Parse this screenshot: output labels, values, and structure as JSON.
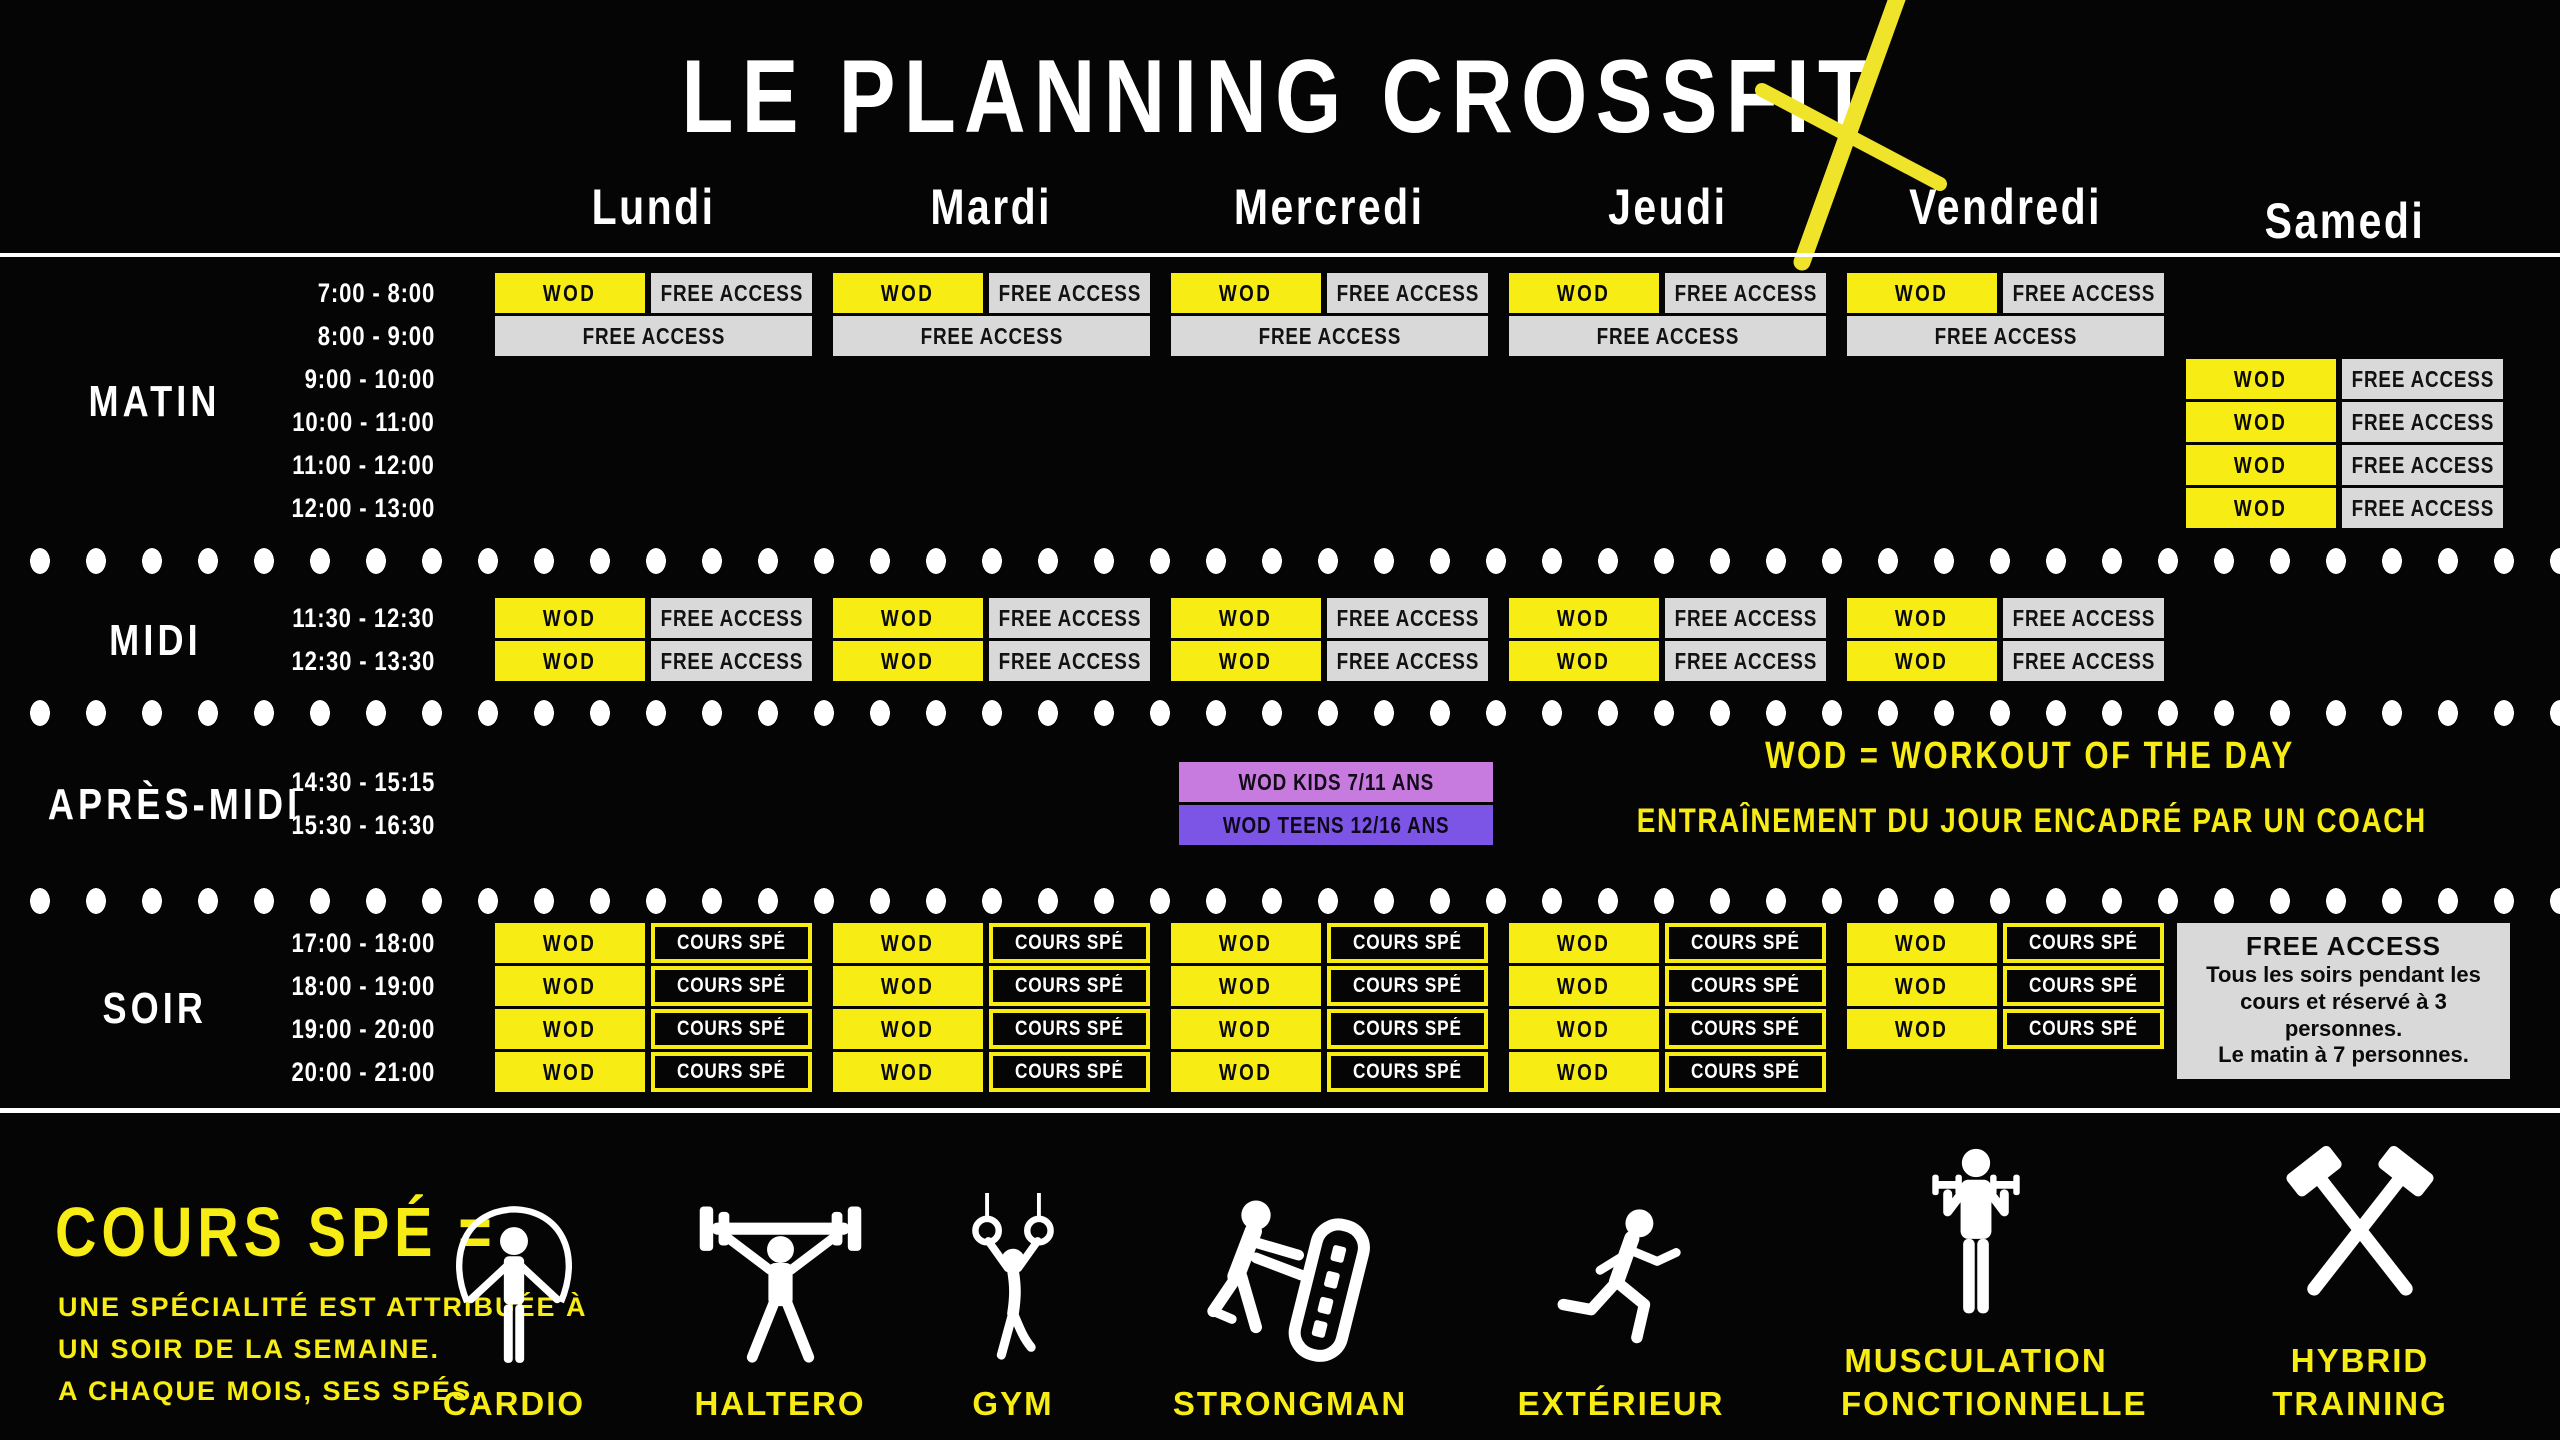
{
  "title": "LE PLANNING CROSSFIT",
  "days": [
    "Lundi",
    "Mardi",
    "Mercredi",
    "Jeudi",
    "Vendredi",
    "Samedi"
  ],
  "cell_labels": {
    "wod": "WOD",
    "free_access": "FREE ACCESS",
    "cours_spe": "COURS SPÉ"
  },
  "special_labels": {
    "kids": "WOD KIDS 7/11 ANS",
    "teens": "WOD TEENS 12/16 ANS"
  },
  "sections": [
    {
      "label": "MATIN",
      "rows": [
        {
          "time": "7:00 - 8:00",
          "cells": [
            {
              "day": 0,
              "type": "wod_free"
            },
            {
              "day": 1,
              "type": "wod_free"
            },
            {
              "day": 2,
              "type": "wod_free"
            },
            {
              "day": 3,
              "type": "wod_free"
            },
            {
              "day": 4,
              "type": "wod_free"
            }
          ]
        },
        {
          "time": "8:00 - 9:00",
          "cells": [
            {
              "day": 0,
              "type": "free_full"
            },
            {
              "day": 1,
              "type": "free_full"
            },
            {
              "day": 2,
              "type": "free_full"
            },
            {
              "day": 3,
              "type": "free_full"
            },
            {
              "day": 4,
              "type": "free_full"
            }
          ]
        },
        {
          "time": "9:00 - 10:00",
          "cells": [
            {
              "day": 5,
              "type": "wod_free"
            }
          ]
        },
        {
          "time": "10:00 - 11:00",
          "cells": [
            {
              "day": 5,
              "type": "wod_free"
            }
          ]
        },
        {
          "time": "11:00 - 12:00",
          "cells": [
            {
              "day": 5,
              "type": "wod_free"
            }
          ]
        },
        {
          "time": "12:00 - 13:00",
          "cells": [
            {
              "day": 5,
              "type": "wod_free"
            }
          ]
        }
      ]
    },
    {
      "label": "MIDI",
      "rows": [
        {
          "time": "11:30 - 12:30",
          "cells": [
            {
              "day": 0,
              "type": "wod_free"
            },
            {
              "day": 1,
              "type": "wod_free"
            },
            {
              "day": 2,
              "type": "wod_free"
            },
            {
              "day": 3,
              "type": "wod_free"
            },
            {
              "day": 4,
              "type": "wod_free"
            }
          ]
        },
        {
          "time": "12:30 - 13:30",
          "cells": [
            {
              "day": 0,
              "type": "wod_free"
            },
            {
              "day": 1,
              "type": "wod_free"
            },
            {
              "day": 2,
              "type": "wod_free"
            },
            {
              "day": 3,
              "type": "wod_free"
            },
            {
              "day": 4,
              "type": "wod_free"
            }
          ]
        }
      ]
    },
    {
      "label": "APRÈS-MIDI",
      "rows": [
        {
          "time": "14:30 - 15:15",
          "cells": [
            {
              "day": 2,
              "type": "kids"
            }
          ]
        },
        {
          "time": "15:30 - 16:30",
          "cells": [
            {
              "day": 2,
              "type": "teens"
            }
          ]
        }
      ]
    },
    {
      "label": "SOIR",
      "rows": [
        {
          "time": "17:00 - 18:00",
          "cells": [
            {
              "day": 0,
              "type": "wod_spe"
            },
            {
              "day": 1,
              "type": "wod_spe"
            },
            {
              "day": 2,
              "type": "wod_spe"
            },
            {
              "day": 3,
              "type": "wod_spe"
            },
            {
              "day": 4,
              "type": "wod_spe"
            }
          ]
        },
        {
          "time": "18:00 - 19:00",
          "cells": [
            {
              "day": 0,
              "type": "wod_spe"
            },
            {
              "day": 1,
              "type": "wod_spe"
            },
            {
              "day": 2,
              "type": "wod_spe"
            },
            {
              "day": 3,
              "type": "wod_spe"
            },
            {
              "day": 4,
              "type": "wod_spe"
            }
          ]
        },
        {
          "time": "19:00 - 20:00",
          "cells": [
            {
              "day": 0,
              "type": "wod_spe"
            },
            {
              "day": 1,
              "type": "wod_spe"
            },
            {
              "day": 2,
              "type": "wod_spe"
            },
            {
              "day": 3,
              "type": "wod_spe"
            },
            {
              "day": 4,
              "type": "wod_spe"
            }
          ]
        },
        {
          "time": "20:00 - 21:00",
          "cells": [
            {
              "day": 0,
              "type": "wod_spe"
            },
            {
              "day": 1,
              "type": "wod_spe"
            },
            {
              "day": 2,
              "type": "wod_spe"
            },
            {
              "day": 3,
              "type": "wod_spe"
            }
          ]
        }
      ]
    }
  ],
  "wod_note": {
    "line1": "WOD = WORKOUT OF THE DAY",
    "line2": "ENTRAÎNEMENT DU JOUR ENCADRÉ PAR UN COACH"
  },
  "saturday_note": {
    "title": "FREE ACCESS",
    "line1": "Tous les soirs pendant les cours et réservé à 3 personnes.",
    "line2": "Le matin à 7 personnes."
  },
  "legend": {
    "heading": "COURS SPÉ =",
    "description": [
      "UNE SPÉCIALITÉ EST ATTRIBUÉE À",
      "UN SOIR DE LA SEMAINE.",
      "A CHAQUE MOIS, SES SPÉS."
    ],
    "items": [
      {
        "label": "CARDIO",
        "icon": "jump-rope-icon"
      },
      {
        "label": "HALTERO",
        "icon": "barbell-overhead-icon"
      },
      {
        "label": "GYM",
        "icon": "gym-rings-icon"
      },
      {
        "label": "STRONGMAN",
        "icon": "tire-flip-icon"
      },
      {
        "label": "EXTÉRIEUR",
        "icon": "runner-icon"
      },
      {
        "label": "MUSCULATION FONCTIONNELLE",
        "icon": "dumbbells-icon"
      },
      {
        "label": "HYBRID TRAINING",
        "icon": "crossed-hammers-icon"
      }
    ]
  },
  "colors": {
    "yellow": "#F7EC13",
    "gray": "#D9D9D9",
    "kids_purple": "#C77BDE",
    "teens_violet": "#7C55E6",
    "background": "#050505",
    "text_white": "#FFFFFF"
  }
}
